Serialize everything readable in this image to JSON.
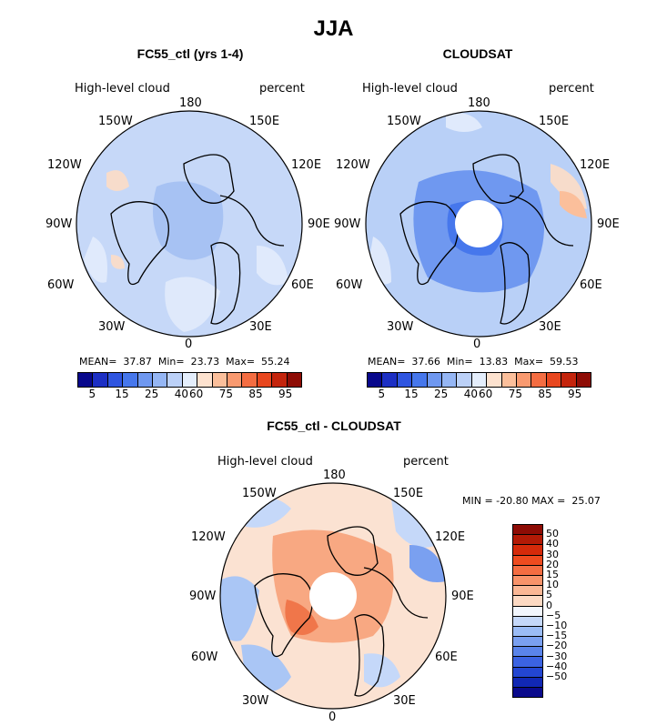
{
  "title": "JJA",
  "panels": {
    "ctl": {
      "title": "FC55_ctl (yrs 1-4)",
      "left_label": "High-level cloud",
      "right_label": "percent",
      "stats": "MEAN=  37.87  Min=  23.73  Max=  55.24"
    },
    "obs": {
      "title": "CLOUDSAT",
      "left_label": "High-level cloud",
      "right_label": "percent",
      "stats": "MEAN=  37.66  Min=  13.83  Max=  59.53"
    },
    "diff": {
      "title": "FC55_ctl - CLOUDSAT",
      "left_label": "High-level cloud",
      "right_label": "percent",
      "stats": "MIN = -20.80 MAX =  25.07"
    }
  },
  "longitude_labels": {
    "n180": "180",
    "w150": "150W",
    "e150": "150E",
    "w120": "120W",
    "e120": "120E",
    "w90": "90W",
    "e90": "90E",
    "w60": "60W",
    "e60": "60E",
    "w30": "30W",
    "e30": "30E",
    "zero": "0"
  },
  "colorbar_abs": {
    "colors": [
      "#08088c",
      "#1c2fc4",
      "#2f55e0",
      "#4677ec",
      "#6f98f0",
      "#95b6f4",
      "#bcd1f8",
      "#e4eefc",
      "#fde2cf",
      "#fbbf9b",
      "#f99a70",
      "#f46d42",
      "#e8471f",
      "#c4240c",
      "#8e0c05"
    ],
    "labels": [
      "5",
      "15",
      "25",
      "40",
      "60",
      "75",
      "85",
      "95"
    ]
  },
  "colorbar_diff": {
    "colors": [
      "#8e0c05",
      "#b31a06",
      "#d52a0a",
      "#ee4b1f",
      "#f46d42",
      "#f8936a",
      "#fab795",
      "#fcd9c3",
      "#f2f6fd",
      "#c5d8f9",
      "#9bbcf5",
      "#7aa0f0",
      "#5a84ea",
      "#3b63e2",
      "#2346d2",
      "#1128b4",
      "#0a0a8c"
    ],
    "labels": [
      "50",
      "40",
      "30",
      "20",
      "15",
      "10",
      "5",
      "0",
      "−5",
      "−10",
      "−15",
      "−20",
      "−30",
      "−40",
      "−50"
    ]
  },
  "colors": {
    "ctl_base": "#c6d8f8",
    "obs_base": "#b9d0f7",
    "diff_base": "#fbe2d2",
    "diff_warm": "#f0764a",
    "diff_cool": "#aac6f5"
  }
}
